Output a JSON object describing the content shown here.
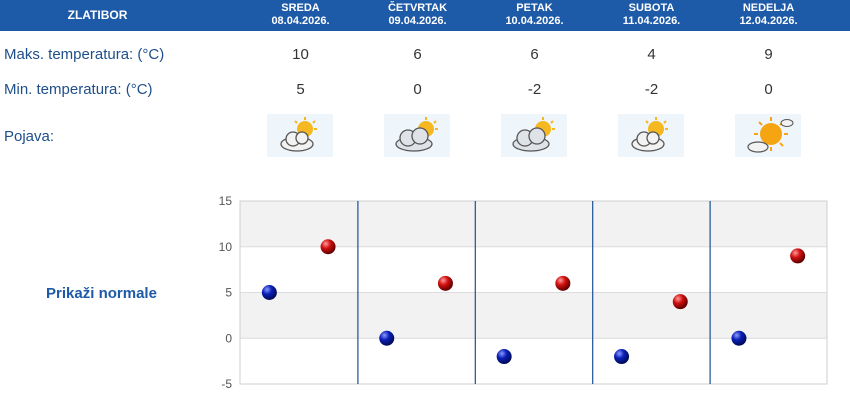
{
  "header": {
    "location": "ZLATIBOR"
  },
  "days": [
    {
      "name": "SREDA",
      "date": "08.04.2026.",
      "max": "10",
      "min": "5",
      "icon": "partly-cloudy-icon"
    },
    {
      "name": "ČETVRTAK",
      "date": "09.04.2026.",
      "max": "6",
      "min": "0",
      "icon": "mostly-cloudy-icon"
    },
    {
      "name": "PETAK",
      "date": "10.04.2026.",
      "max": "6",
      "min": "-2",
      "icon": "mostly-cloudy-icon"
    },
    {
      "name": "SUBOTA",
      "date": "11.04.2026.",
      "max": "4",
      "min": "-2",
      "icon": "partly-cloudy-icon"
    },
    {
      "name": "NEDELJA",
      "date": "12.04.2026.",
      "max": "9",
      "min": "0",
      "icon": "mostly-sunny-icon"
    }
  ],
  "labels": {
    "max": "Maks. temperatura: (°C)",
    "min": "Min. temperatura: (°C)",
    "phenomenon": "Pojava:",
    "show_normals": "Prikaži normale"
  },
  "colors": {
    "header": "#1d5aa8",
    "min_dot": "#0b1fb8",
    "max_dot": "#d10f0f"
  },
  "chart_data": {
    "type": "scatter",
    "categories": [
      "08.04.2026.",
      "09.04.2026.",
      "10.04.2026.",
      "11.04.2026.",
      "12.04.2026."
    ],
    "series": [
      {
        "values": [
          5,
          0,
          -2,
          -2,
          0
        ]
      },
      {
        "values": [
          10,
          6,
          6,
          4,
          9
        ]
      }
    ],
    "ylim": [
      -5,
      15
    ],
    "yticks": [
      "15",
      "10",
      "5",
      "0",
      "-5"
    ],
    "grid": true
  }
}
